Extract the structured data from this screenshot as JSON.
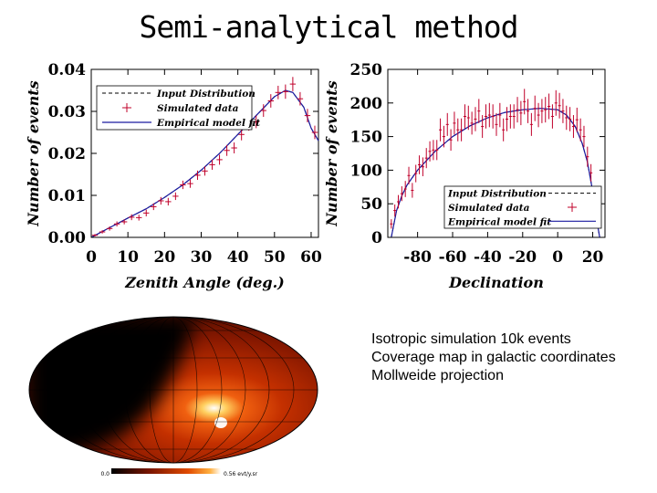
{
  "title": "Semi-analytical method",
  "caption": [
    "Isotropic simulation 10k events",
    "Coverage map in galactic coordinates",
    "Mollweide projection"
  ],
  "chart_data": [
    {
      "type": "line",
      "xlabel": "Zenith Angle (deg.)",
      "ylabel": "Number of events",
      "xlim": [
        0,
        62
      ],
      "ylim": [
        0,
        0.04
      ],
      "xticks": [
        0,
        10,
        20,
        30,
        40,
        50,
        60
      ],
      "yticks": [
        "0.00",
        "0.01",
        "0.02",
        "0.03",
        "0.04"
      ],
      "legend": {
        "position": "top-left",
        "entries": [
          "Input Distribution",
          "Simulated data",
          "Empirical model fit"
        ]
      },
      "series": [
        {
          "name": "Input Distribution",
          "x": [
            0,
            5,
            10,
            15,
            20,
            25,
            30,
            35,
            40,
            45,
            50,
            53,
            55,
            58,
            60,
            62
          ],
          "y": [
            0,
            0.0023,
            0.0046,
            0.0068,
            0.0095,
            0.0125,
            0.016,
            0.02,
            0.0245,
            0.029,
            0.0335,
            0.035,
            0.0345,
            0.031,
            0.026,
            0.023
          ]
        },
        {
          "name": "Simulated data",
          "x": [
            1,
            3,
            5,
            7,
            9,
            11,
            13,
            15,
            17,
            19,
            21,
            23,
            25,
            27,
            29,
            31,
            33,
            35,
            37,
            39,
            41,
            43,
            45,
            47,
            49,
            51,
            53,
            55,
            57,
            59,
            61
          ],
          "y": [
            0.0005,
            0.0013,
            0.0021,
            0.0032,
            0.0037,
            0.0048,
            0.0047,
            0.0058,
            0.0073,
            0.0087,
            0.0085,
            0.0098,
            0.0125,
            0.0128,
            0.0148,
            0.0158,
            0.0173,
            0.0185,
            0.0207,
            0.0213,
            0.0245,
            0.0268,
            0.0275,
            0.0302,
            0.0325,
            0.0345,
            0.0347,
            0.0365,
            0.033,
            0.029,
            0.025
          ],
          "err": [
            0.0003,
            0.0004,
            0.0005,
            0.0006,
            0.0006,
            0.0007,
            0.0007,
            0.0008,
            0.0008,
            0.0009,
            0.0009,
            0.0009,
            0.001,
            0.001,
            0.0011,
            0.0011,
            0.0012,
            0.0012,
            0.0013,
            0.0013,
            0.0014,
            0.0014,
            0.0015,
            0.0015,
            0.0016,
            0.0016,
            0.0017,
            0.0017,
            0.0016,
            0.0016,
            0.0016
          ]
        },
        {
          "name": "Empirical model fit",
          "x": [
            0,
            5,
            10,
            15,
            20,
            25,
            30,
            35,
            40,
            45,
            50,
            53,
            55,
            58,
            60,
            62
          ],
          "y": [
            0,
            0.0023,
            0.0046,
            0.0068,
            0.0095,
            0.0125,
            0.016,
            0.02,
            0.0245,
            0.029,
            0.0335,
            0.035,
            0.0345,
            0.031,
            0.026,
            0.023
          ]
        }
      ]
    },
    {
      "type": "line",
      "xlabel": "Declination",
      "ylabel": "Number of events",
      "xlim": [
        -97,
        27
      ],
      "ylim": [
        0,
        250
      ],
      "xticks": [
        -80,
        -60,
        -40,
        -20,
        0,
        20
      ],
      "yticks": [
        "0",
        "50",
        "100",
        "150",
        "200",
        "250"
      ],
      "legend": {
        "position": "bottom-right",
        "entries": [
          "Input Distribution",
          "Simulated data",
          "Empirical model fit"
        ]
      },
      "series": [
        {
          "name": "Input Distribution",
          "x": [
            -95,
            -92,
            -89,
            -86,
            -80,
            -70,
            -60,
            -50,
            -40,
            -30,
            -20,
            -10,
            0,
            5,
            10,
            14,
            17,
            20,
            22,
            24
          ],
          "y": [
            0,
            40,
            62,
            78,
            100,
            128,
            150,
            166,
            178,
            186,
            190,
            192,
            190,
            182,
            165,
            140,
            112,
            68,
            30,
            0
          ]
        },
        {
          "name": "Simulated data",
          "x": [
            -95,
            -93,
            -91,
            -89,
            -87,
            -85,
            -83,
            -81,
            -79,
            -77,
            -75,
            -73,
            -71,
            -69,
            -67,
            -65,
            -63,
            -61,
            -59,
            -57,
            -55,
            -53,
            -51,
            -49,
            -47,
            -45,
            -43,
            -41,
            -39,
            -37,
            -35,
            -33,
            -31,
            -29,
            -27,
            -25,
            -23,
            -21,
            -19,
            -17,
            -15,
            -13,
            -11,
            -9,
            -7,
            -5,
            -3,
            -1,
            1,
            3,
            5,
            7,
            9,
            11,
            13,
            15,
            17,
            19,
            21,
            23
          ],
          "y": [
            20,
            40,
            53,
            65,
            72,
            92,
            70,
            95,
            108,
            105,
            118,
            128,
            130,
            130,
            160,
            150,
            168,
            145,
            170,
            160,
            160,
            180,
            178,
            170,
            176,
            188,
            165,
            180,
            182,
            180,
            168,
            182,
            160,
            176,
            180,
            180,
            190,
            185,
            202,
            188,
            168,
            192,
            182,
            188,
            190,
            195,
            180,
            200,
            196,
            188,
            178,
            176,
            165,
            175,
            160,
            150,
            120,
            96,
            52,
            26
          ],
          "err": [
            7,
            9,
            10,
            11,
            12,
            13,
            11,
            13,
            14,
            14,
            15,
            15,
            15,
            15,
            17,
            16,
            17,
            16,
            17,
            17,
            17,
            18,
            18,
            17,
            18,
            18,
            17,
            18,
            18,
            18,
            17,
            18,
            17,
            18,
            18,
            18,
            19,
            18,
            19,
            18,
            17,
            19,
            18,
            18,
            19,
            19,
            18,
            19,
            19,
            18,
            18,
            18,
            17,
            18,
            17,
            16,
            15,
            13,
            10,
            7
          ]
        },
        {
          "name": "Empirical model fit",
          "x": [
            -95,
            -92,
            -89,
            -86,
            -80,
            -70,
            -60,
            -50,
            -40,
            -30,
            -20,
            -10,
            0,
            5,
            10,
            14,
            17,
            20,
            22,
            24
          ],
          "y": [
            0,
            40,
            62,
            78,
            100,
            128,
            150,
            166,
            178,
            186,
            190,
            192,
            190,
            182,
            165,
            140,
            112,
            68,
            30,
            0
          ]
        }
      ]
    }
  ],
  "skymap": {
    "projection": "Mollweide",
    "colorbar": {
      "min_label": "0.0",
      "max_label": "0.56 evt/y.sr"
    },
    "colors": {
      "empty": "#000000",
      "low": "#5a1000",
      "mid": "#d63a00",
      "high": "#ffffff"
    }
  }
}
